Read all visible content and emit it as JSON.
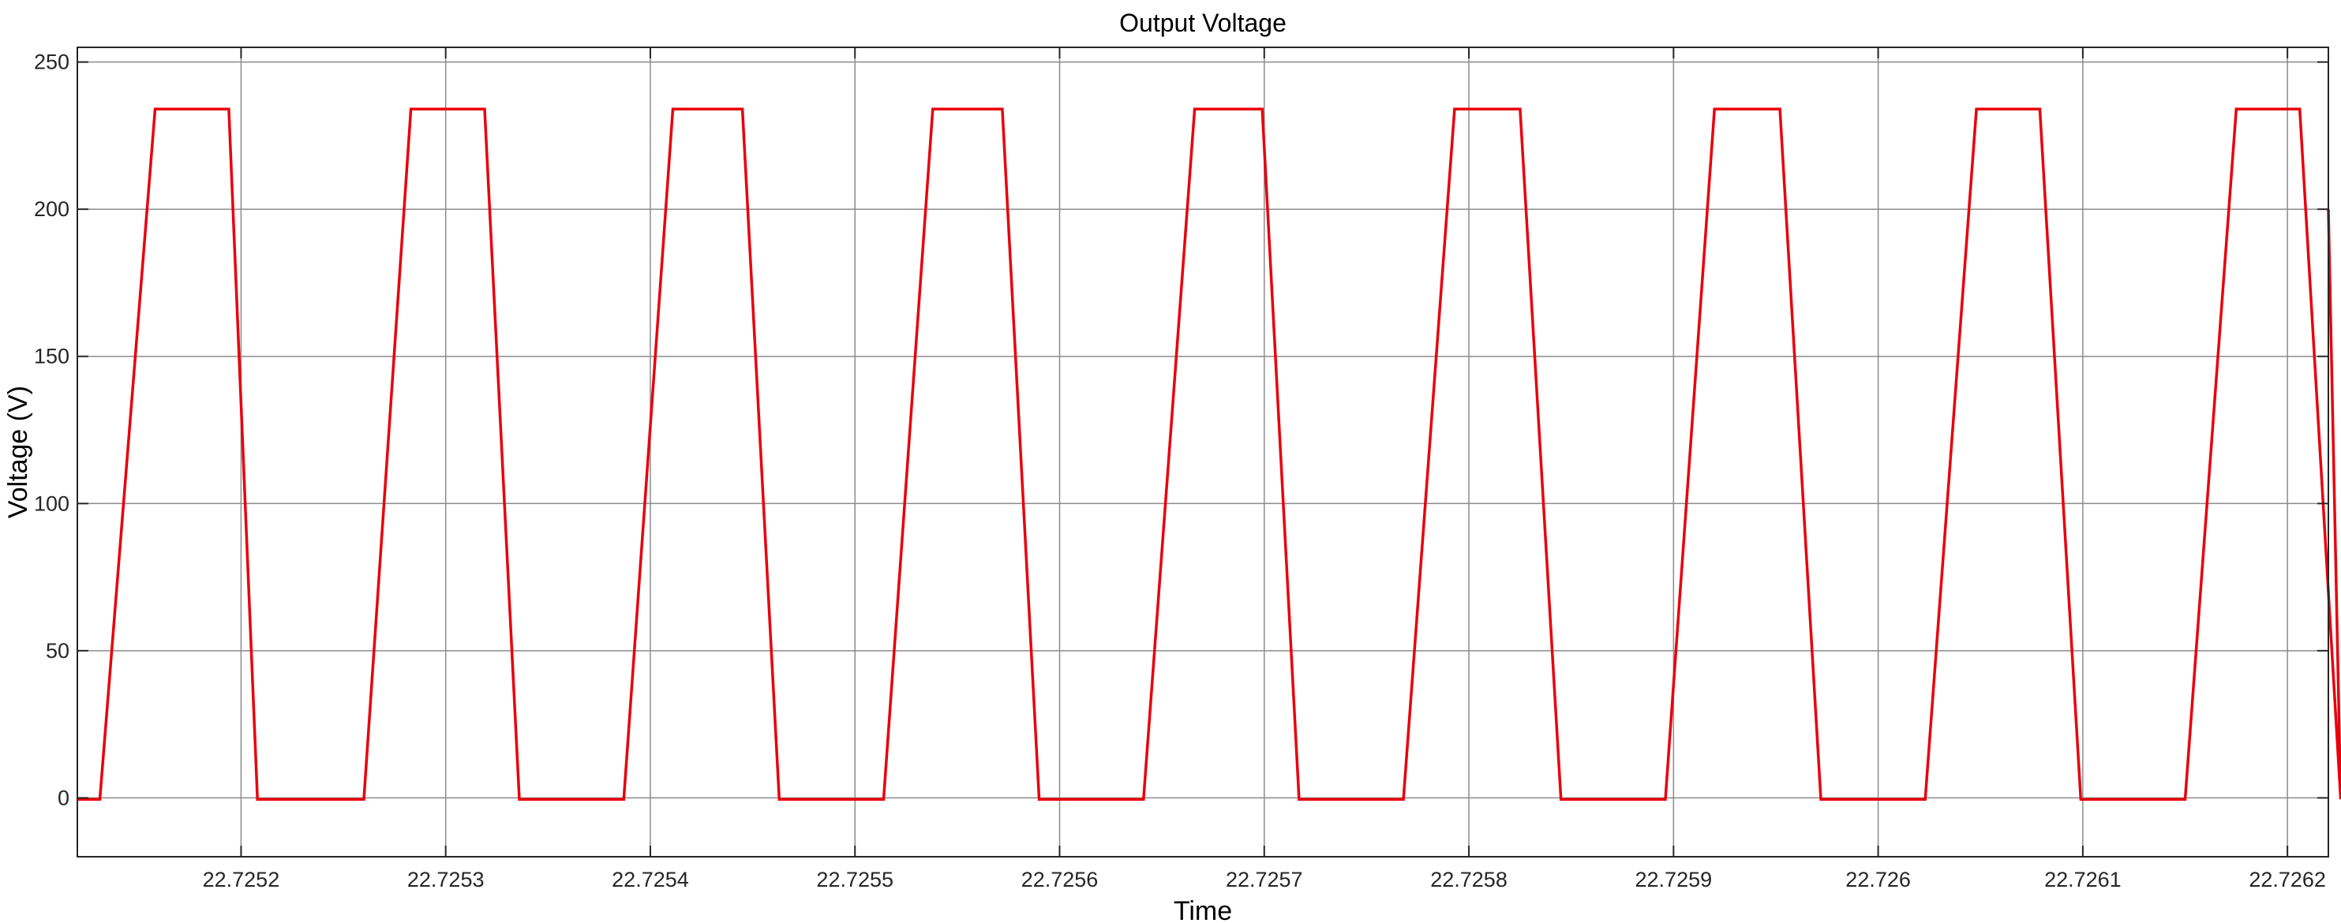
{
  "chart_data": {
    "type": "line",
    "title": "Output Voltage",
    "xlabel": "Time",
    "ylabel": "Voltage (V)",
    "xlim": [
      22.72512,
      22.72622
    ],
    "ylim": [
      -20,
      255
    ],
    "grid": true,
    "xticks": [
      {
        "value": 22.7252,
        "label": "22.7252"
      },
      {
        "value": 22.7253,
        "label": "22.7253"
      },
      {
        "value": 22.7254,
        "label": "22.7254"
      },
      {
        "value": 22.7255,
        "label": "22.7255"
      },
      {
        "value": 22.7256,
        "label": "22.7256"
      },
      {
        "value": 22.7257,
        "label": "22.7257"
      },
      {
        "value": 22.7258,
        "label": "22.7258"
      },
      {
        "value": 22.7259,
        "label": "22.7259"
      },
      {
        "value": 22.726,
        "label": "22.726"
      },
      {
        "value": 22.7261,
        "label": "22.7261"
      },
      {
        "value": 22.7262,
        "label": "22.7262"
      }
    ],
    "yticks": [
      {
        "value": 0,
        "label": "0"
      },
      {
        "value": 50,
        "label": "50"
      },
      {
        "value": 100,
        "label": "100"
      },
      {
        "value": 150,
        "label": "150"
      },
      {
        "value": 200,
        "label": "200"
      },
      {
        "value": 250,
        "label": "250"
      }
    ],
    "series": [
      {
        "color": "#e8000b",
        "x": [
          22.72512,
          22.725131,
          22.725158,
          22.725194,
          22.725208,
          22.72526,
          22.725283,
          22.725319,
          22.725336,
          22.725387,
          22.725411,
          22.725445,
          22.725463,
          22.725514,
          22.725538,
          22.725572,
          22.72559,
          22.725641,
          22.725666,
          22.725699,
          22.725717,
          22.725768,
          22.725793,
          22.725825,
          22.725845,
          22.725896,
          22.72592,
          22.725952,
          22.725972,
          22.726023,
          22.726048,
          22.726079,
          22.726099,
          22.72615,
          22.726175,
          22.726206,
          22.726226,
          22.72622
        ],
        "y": [
          -0.5,
          -0.5,
          234,
          234,
          -0.5,
          -0.5,
          234,
          234,
          -0.5,
          -0.5,
          234,
          234,
          -0.5,
          -0.5,
          234,
          234,
          -0.5,
          -0.5,
          234,
          234,
          -0.5,
          -0.5,
          234,
          234,
          -0.5,
          -0.5,
          234,
          234,
          -0.5,
          -0.5,
          234,
          234,
          -0.5,
          -0.5,
          234,
          234,
          -0.5,
          200
        ]
      }
    ]
  }
}
